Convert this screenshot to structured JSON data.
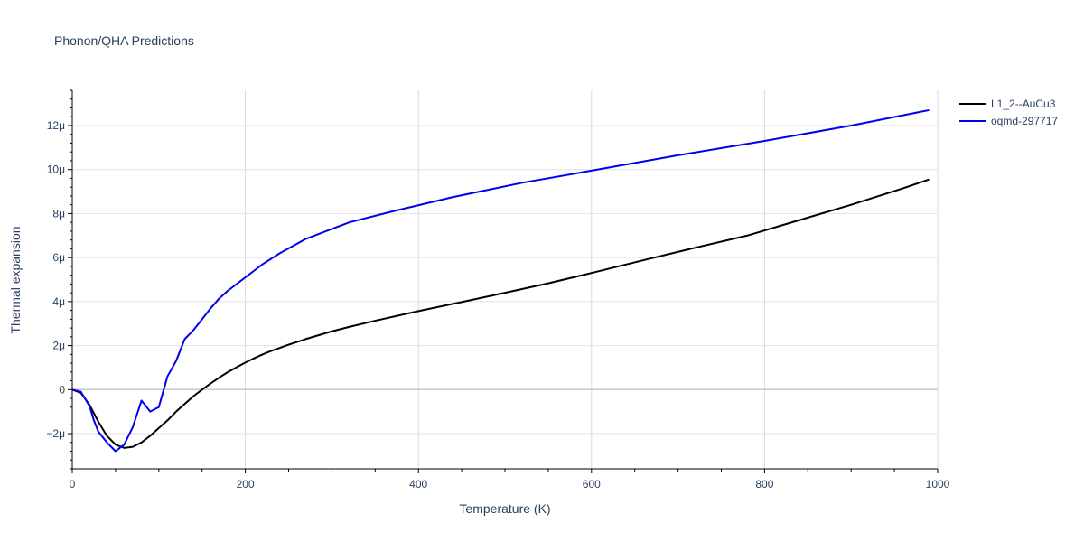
{
  "chart_data": {
    "type": "line",
    "title": "Phonon/QHA Predictions",
    "xlabel": "Temperature (K)",
    "ylabel": "Thermal expansion",
    "xlim": [
      0,
      1000
    ],
    "ylim": [
      -3.6e-06,
      1.36e-05
    ],
    "x_ticks": [
      0,
      200,
      400,
      600,
      800,
      1000
    ],
    "x_tick_labels": [
      "0",
      "200",
      "400",
      "600",
      "800",
      "1000"
    ],
    "y_ticks": [
      -2e-06,
      0,
      2e-06,
      4e-06,
      6e-06,
      8e-06,
      1e-05,
      1.2e-05
    ],
    "y_tick_labels": [
      "−2μ",
      "0",
      "2μ",
      "4μ",
      "6μ",
      "8μ",
      "10μ",
      "12μ"
    ],
    "grid": true,
    "legend_position": "top-right",
    "series": [
      {
        "name": "L1_2--AuCu3",
        "color": "#000000",
        "x": [
          0,
          10,
          20,
          30,
          40,
          50,
          60,
          70,
          80,
          90,
          100,
          110,
          120,
          130,
          140,
          150,
          160,
          170,
          180,
          190,
          200,
          210,
          220,
          230,
          240,
          250,
          270,
          300,
          320,
          350,
          400,
          450,
          500,
          550,
          600,
          660,
          720,
          780,
          840,
          900,
          960,
          990
        ],
        "y": [
          0,
          -1.5e-07,
          -7e-07,
          -1.45e-06,
          -2.1e-06,
          -2.5e-06,
          -2.65e-06,
          -2.6e-06,
          -2.4e-06,
          -2.1e-06,
          -1.75e-06,
          -1.4e-06,
          -1e-06,
          -6.5e-07,
          -3e-07,
          0.0,
          2.8e-07,
          5.5e-07,
          8e-07,
          1.02e-06,
          1.23e-06,
          1.42e-06,
          1.6e-06,
          1.76e-06,
          1.9e-06,
          2.04e-06,
          2.3e-06,
          2.65e-06,
          2.85e-06,
          3.13e-06,
          3.57e-06,
          3.98e-06,
          4.4e-06,
          4.83e-06,
          5.3e-06,
          5.88e-06,
          6.45e-06,
          7e-06,
          7.7e-06,
          8.4e-06,
          9.15e-06,
          9.55e-06
        ]
      },
      {
        "name": "oqmd-297717",
        "color": "#0000ee",
        "x": [
          0,
          10,
          20,
          25,
          30,
          40,
          50,
          60,
          70,
          80,
          90,
          100,
          110,
          120,
          130,
          140,
          150,
          160,
          170,
          180,
          190,
          200,
          210,
          220,
          240,
          270,
          300,
          320,
          370,
          440,
          520,
          600,
          700,
          800,
          900,
          990
        ],
        "y": [
          0,
          -1e-07,
          -7.5e-07,
          -1.4e-06,
          -1.9e-06,
          -2.4e-06,
          -2.8e-06,
          -2.5e-06,
          -1.7e-06,
          -5e-07,
          -1e-06,
          -8e-07,
          6e-07,
          1.3e-06,
          2.3e-06,
          2.7e-06,
          3.2e-06,
          3.7e-06,
          4.15e-06,
          4.5e-06,
          4.8e-06,
          5.1e-06,
          5.4e-06,
          5.7e-06,
          6.2e-06,
          6.85e-06,
          7.3e-06,
          7.6e-06,
          8.1e-06,
          8.75e-06,
          9.4e-06,
          9.95e-06,
          1.065e-05,
          1.13e-05,
          1.2e-05,
          1.27e-05
        ]
      }
    ]
  }
}
